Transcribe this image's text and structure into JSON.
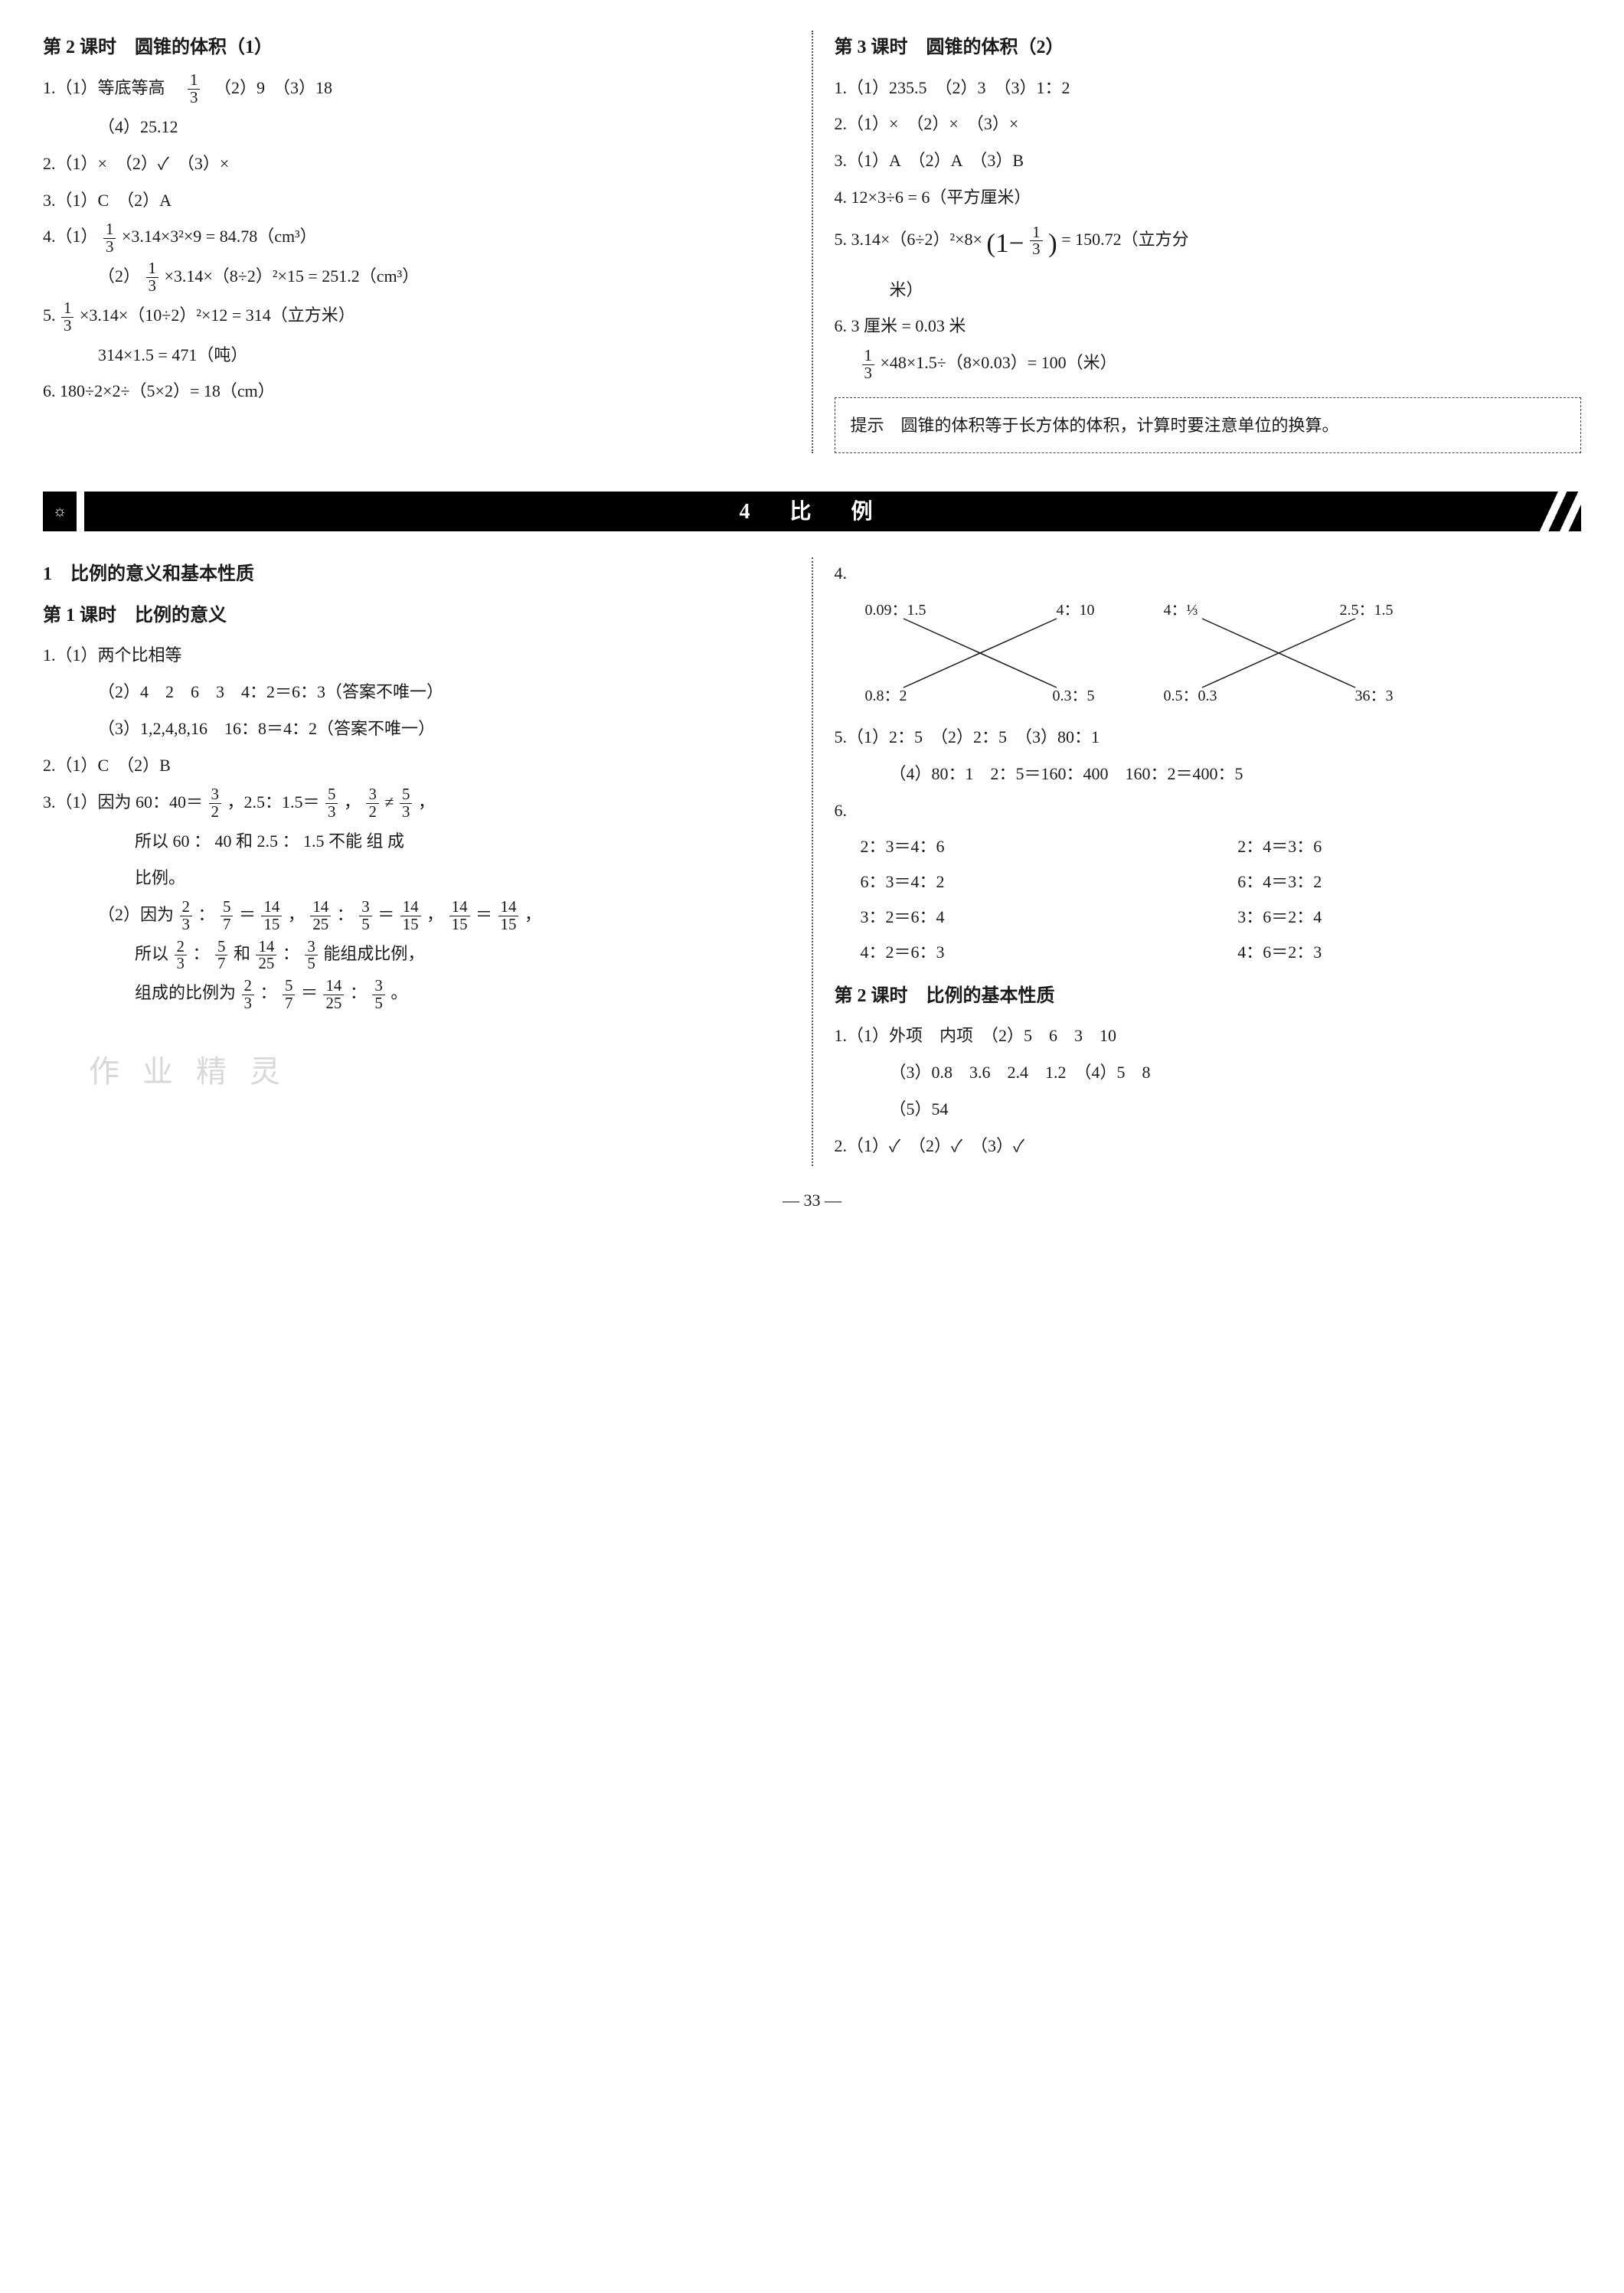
{
  "top": {
    "left": {
      "title": "第 2 课时　圆锥的体积（1）",
      "q1": "1.（1）等底等高　",
      "q1_frac": {
        "num": "1",
        "den": "3"
      },
      "q1_tail": "　（2）9　（3）18",
      "q1_4": "（4）25.12",
      "q2": "2.（1）×　（2）✓　（3）×",
      "q3": "3.（1）C　（2）A",
      "q4_label": "4.（1）",
      "q4_1_frac": {
        "num": "1",
        "den": "3"
      },
      "q4_1_expr": "×3.14×3²×9 = 84.78（cm³）",
      "q4_2_label": "（2）",
      "q4_2_frac": {
        "num": "1",
        "den": "3"
      },
      "q4_2_expr": "×3.14×（8÷2）²×15 = 251.2（cm³）",
      "q5_label": "5. ",
      "q5_frac": {
        "num": "1",
        "den": "3"
      },
      "q5_expr": "×3.14×（10÷2）²×12 = 314（立方米）",
      "q5_line2": "314×1.5 = 471（吨）",
      "q6": "6. 180÷2×2÷（5×2）= 18（cm）"
    },
    "right": {
      "title": "第 3 课时　圆锥的体积（2）",
      "q1": "1.（1）235.5　（2）3　（3）1：2",
      "q2": "2.（1）×　（2）×　（3）×",
      "q3": "3.（1）A　（2）A　（3）B",
      "q4": "4. 12×3÷6 = 6（平方厘米）",
      "q5_pre": "5. 3.14×（6÷2）²×8×",
      "q5_paren_lead": "(1−",
      "q5_frac": {
        "num": "1",
        "den": "3"
      },
      "q5_paren_tail": ")",
      "q5_tail": " = 150.72（立方分",
      "q5_line2": "米）",
      "q6a": "6. 3 厘米 = 0.03 米",
      "q6b_frac": {
        "num": "1",
        "den": "3"
      },
      "q6b_expr": "×48×1.5÷（8×0.03）= 100（米）",
      "hint": "提示　圆锥的体积等于长方体的体积，计算时要注意单位的换算。"
    }
  },
  "banner": {
    "bulb": "☼",
    "label": "4　比　例"
  },
  "bottom": {
    "left": {
      "h1": "1　比例的意义和基本性质",
      "h2": "第 1 课时　比例的意义",
      "q1_1": "1.（1）两个比相等",
      "q1_2": "（2）4　2　6　3　4：2＝6：3（答案不唯一）",
      "q1_3": "（3）1,2,4,8,16　16：8＝4：2（答案不唯一）",
      "q2": "2.（1）C　（2）B",
      "q3_1_pre": "3.（1）因为 60：40＝",
      "q3_1_f1": {
        "num": "3",
        "den": "2"
      },
      "q3_1_mid": "，2.5：1.5＝",
      "q3_1_f2": {
        "num": "5",
        "den": "3"
      },
      "q3_1_comma": "，",
      "q3_1_f3": {
        "num": "3",
        "den": "2"
      },
      "q3_1_ne": "≠",
      "q3_1_f4": {
        "num": "5",
        "den": "3"
      },
      "q3_1_end": "，",
      "q3_1_line2": "所以 60 ： 40 和 2.5 ： 1.5 不能 组 成",
      "q3_1_line3": "比例。",
      "q3_2_pre": "（2）因为",
      "q3_2_f1": {
        "num": "2",
        "den": "3"
      },
      "colon": "：",
      "q3_2_f2": {
        "num": "5",
        "den": "7"
      },
      "eq": "＝",
      "q3_2_f3": {
        "num": "14",
        "den": "15"
      },
      "q3_2_comma": "，",
      "q3_2_f4": {
        "num": "14",
        "den": "25"
      },
      "q3_2_f5": {
        "num": "3",
        "den": "5"
      },
      "q3_2_f6": {
        "num": "14",
        "den": "15"
      },
      "q3_2_f7": {
        "num": "14",
        "den": "15"
      },
      "q3_2_f8": {
        "num": "14",
        "den": "15"
      },
      "q3_2_line2_pre": "所以",
      "q3_2_line2_tail": "能组成比例，",
      "q3_2_line3_pre": "组成的比例为",
      "period": "。",
      "wm": "作 业 精 灵"
    },
    "right": {
      "q4_label": "4.",
      "xpairs": [
        {
          "tL": "0.09：1.5",
          "tR": "4：10",
          "bL": "0.8：2",
          "bR": "0.3：5"
        },
        {
          "tL": "4：⅓",
          "tR": "2.5：1.5",
          "bL": "0.5：0.3",
          "bR": "36：3"
        }
      ],
      "q5": "5.（1）2：5　（2）2：5　（3）80：1",
      "q5b": "（4）80：1　2：5＝160：400　160：2＝400：5",
      "q6_rows": [
        [
          "2：3＝4：6",
          "2：4＝3：6"
        ],
        [
          "6：3＝4：2",
          "6：4＝3：2"
        ],
        [
          "3：2＝6：4",
          "3：6＝2：4"
        ],
        [
          "4：2＝6：3",
          "4：6＝2：3"
        ]
      ],
      "q6_label": "6. ",
      "h3": "第 2 课时　比例的基本性质",
      "r1": "1.（1）外项　内项　（2）5　6　3　10",
      "r1b": "（3）0.8　3.6　2.4　1.2　（4）5　8",
      "r1c": "（5）54",
      "r2": "2.（1）✓　（2）✓　（3）✓"
    }
  },
  "page_num": "— 33 —",
  "svg_stroke": "#1a1a1a"
}
